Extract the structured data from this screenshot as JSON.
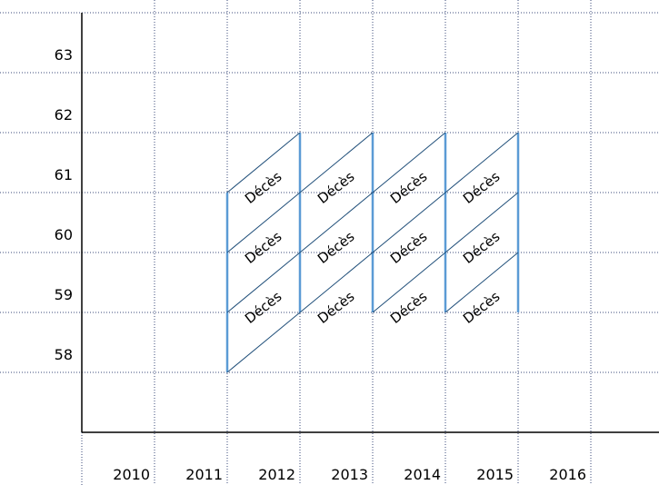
{
  "ages": [
    "63",
    "62",
    "61",
    "60",
    "59",
    "58"
  ],
  "years": [
    "2010",
    "2011",
    "2012",
    "2013",
    "2014",
    "2015",
    "2016"
  ],
  "cells": [
    {
      "label": "Décès"
    },
    {
      "label": "Décès"
    },
    {
      "label": "Décès"
    },
    {
      "label": "Décès"
    },
    {
      "label": "Décès"
    },
    {
      "label": "Décès"
    },
    {
      "label": "Décès"
    },
    {
      "label": "Décès"
    },
    {
      "label": "Décès"
    },
    {
      "label": "Décès"
    },
    {
      "label": "Décès"
    },
    {
      "label": "Décès"
    }
  ]
}
